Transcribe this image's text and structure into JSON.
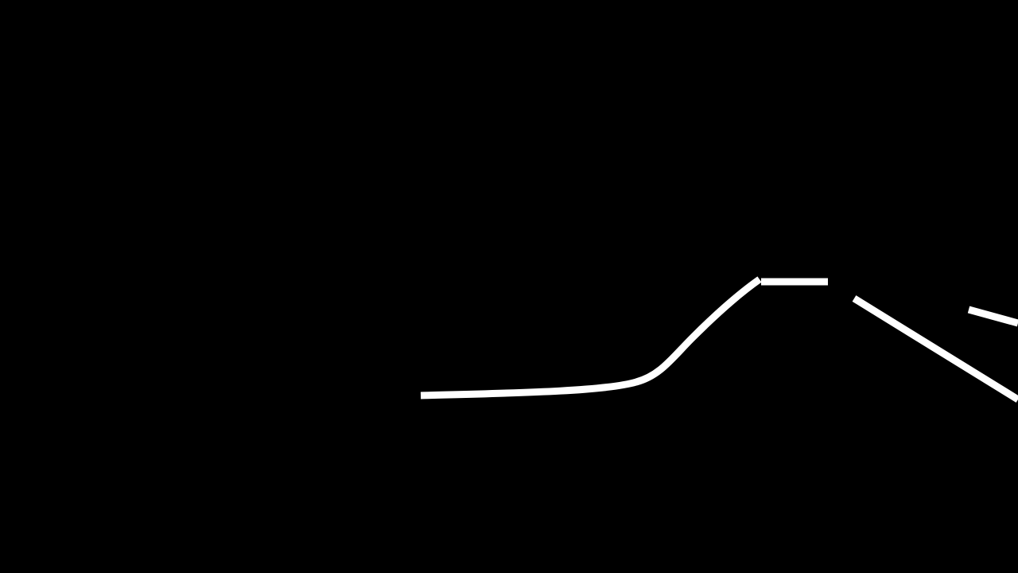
{
  "scene": {
    "background_color": "#000000",
    "track_color": "#FFFFFF",
    "segments": [
      {
        "name": "track-segment-flat-slope"
      },
      {
        "name": "track-segment-plateau"
      },
      {
        "name": "track-segment-downhill"
      },
      {
        "name": "track-segment-upper-right"
      }
    ]
  }
}
